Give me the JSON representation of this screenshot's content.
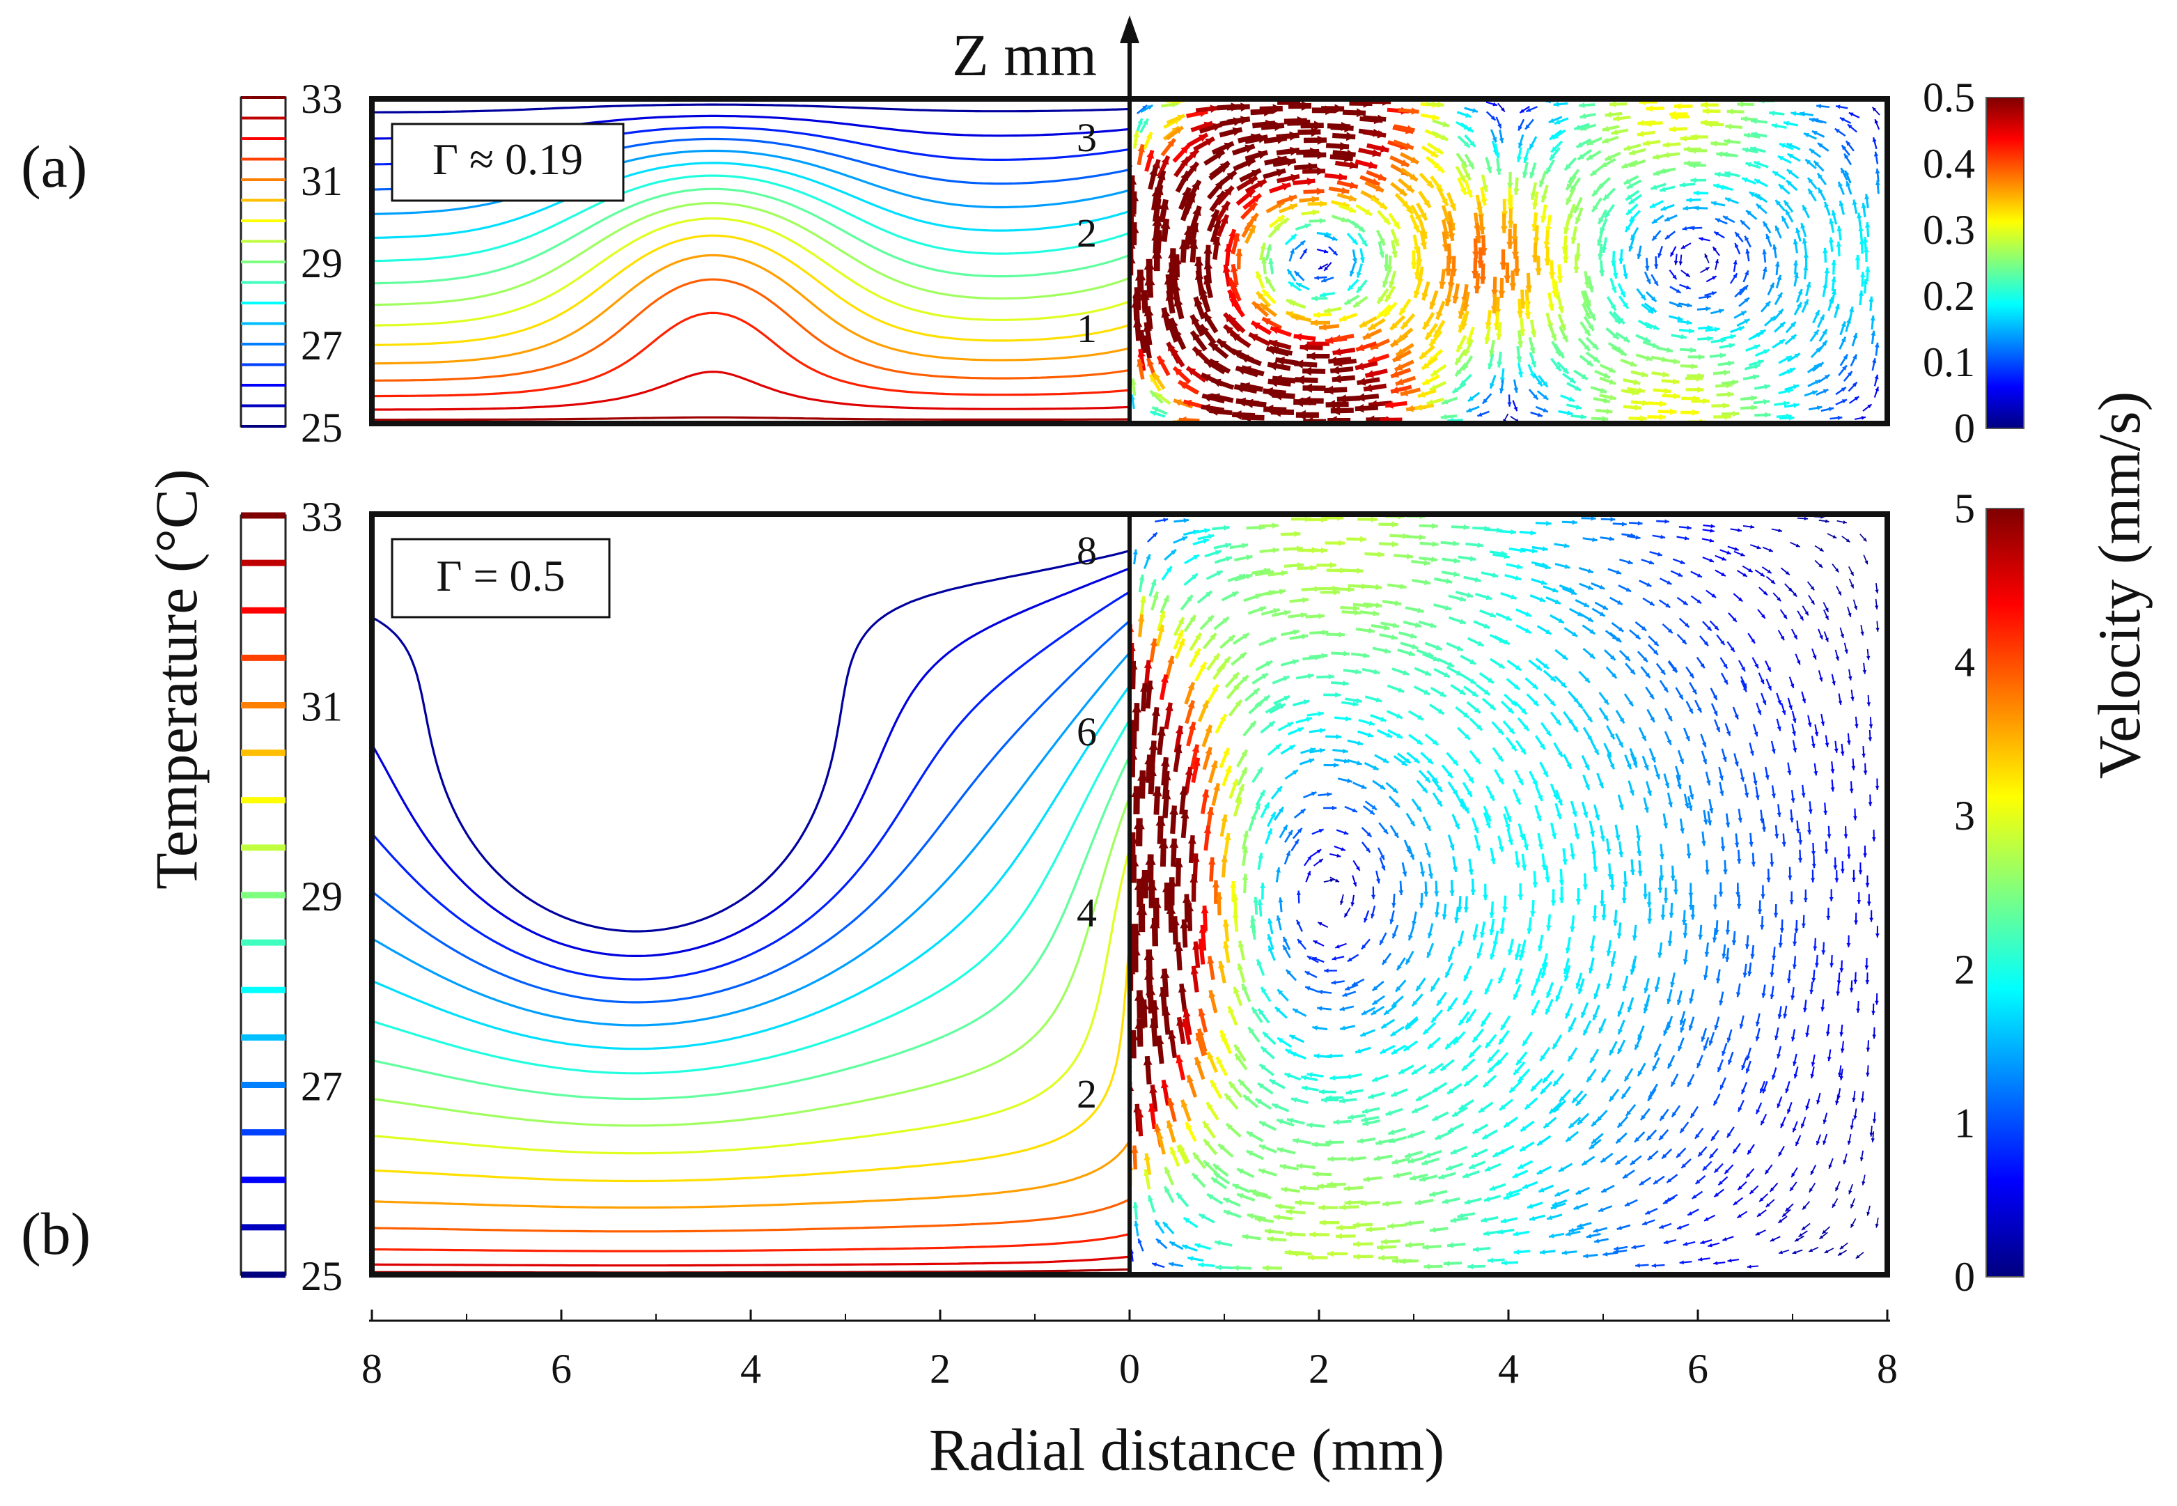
{
  "chart_data": [
    {
      "panel": "(a)",
      "type": "contour+vector",
      "annotation": "Γ ≈ 0.19",
      "x_left": {
        "label": "Radial distance (mm)",
        "ticks": [
          "8",
          "6",
          "4",
          "2",
          "0"
        ],
        "range": [
          8,
          0
        ]
      },
      "x_right": {
        "label": "Radial distance (mm)",
        "ticks": [
          "0",
          "2",
          "4",
          "6",
          "8"
        ],
        "range": [
          0,
          8
        ]
      },
      "z_axis": {
        "label": "Z mm",
        "ticks": [
          "1",
          "2",
          "3"
        ],
        "range": [
          0,
          3.4
        ]
      },
      "temperature_colorbar": {
        "label": "Temperature (°C)",
        "ticks": [
          "25",
          "27",
          "29",
          "31",
          "33"
        ],
        "range": [
          25,
          33
        ],
        "levels": 16
      },
      "velocity_colorbar": {
        "label": "Velocity (mm/s)",
        "ticks": [
          "0",
          "0.1",
          "0.2",
          "0.3",
          "0.4",
          "0.5"
        ],
        "range": [
          0,
          0.5
        ]
      },
      "flow_pattern": "two counter-rotating cells, upward flow near r = 0",
      "max_velocity_mm_s": 0.45
    },
    {
      "panel": "(b)",
      "type": "contour+vector",
      "annotation": "Γ = 0.5",
      "x_left": {
        "label": "Radial distance (mm)",
        "ticks": [
          "8",
          "6",
          "4",
          "2",
          "0"
        ],
        "range": [
          8,
          0
        ]
      },
      "x_right": {
        "label": "Radial distance (mm)",
        "ticks": [
          "0",
          "2",
          "4",
          "6",
          "8"
        ],
        "range": [
          0,
          8
        ]
      },
      "z_axis": {
        "label": "Z mm",
        "ticks": [
          "2",
          "4",
          "6",
          "8"
        ],
        "range": [
          0,
          8.4
        ]
      },
      "temperature_colorbar": {
        "label": "Temperature (°C)",
        "ticks": [
          "25",
          "27",
          "29",
          "31",
          "33"
        ],
        "range": [
          25,
          33
        ],
        "levels": 16
      },
      "velocity_colorbar": {
        "label": "Velocity (mm/s)",
        "ticks": [
          "0",
          "1",
          "2",
          "3",
          "4",
          "5"
        ],
        "range": [
          0,
          5
        ]
      },
      "flow_pattern": "single large cell, strong upward jet near r = 0",
      "max_velocity_mm_s": 5
    }
  ],
  "labels": {
    "panel_a": "(a)",
    "panel_b": "(b)",
    "z_axis_title": "Z mm",
    "x_axis_title": "Radial distance (mm)",
    "temperature_title": "Temperature (°C)",
    "velocity_title": "Velocity (mm/s)",
    "gamma_a": "Γ ≈ 0.19",
    "gamma_b": "Γ = 0.5"
  },
  "x_ticks_left": [
    "8",
    "6",
    "4",
    "2",
    "0"
  ],
  "x_ticks_right": [
    "2",
    "4",
    "6",
    "8"
  ],
  "colors": {
    "jet": [
      "#00007f",
      "#0000ff",
      "#007fff",
      "#00ffff",
      "#7fff7f",
      "#ffff00",
      "#ff7f00",
      "#ff0000",
      "#7f0000"
    ]
  }
}
